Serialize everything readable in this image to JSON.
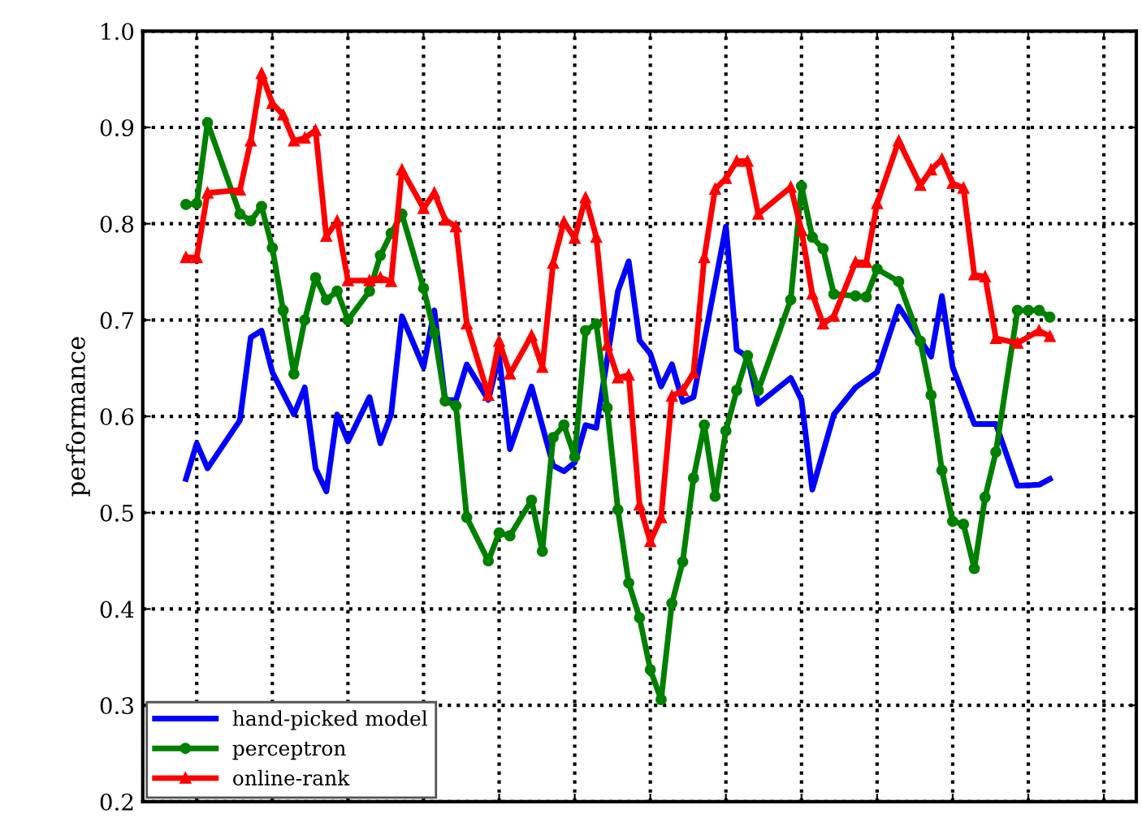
{
  "chart_data": {
    "type": "line",
    "ylabel": "performance",
    "categories": [
      null,
      null,
      null,
      null,
      null,
      null,
      null,
      null,
      null,
      null,
      null,
      null,
      null,
      null,
      null,
      null,
      null,
      null,
      null,
      null,
      null,
      null,
      null,
      null,
      null,
      null,
      null,
      null,
      null,
      null,
      null,
      null,
      null,
      null,
      null,
      null,
      null,
      null,
      null,
      null,
      null,
      null,
      null,
      null,
      null,
      null,
      null,
      null,
      null,
      null,
      null,
      null,
      null,
      null,
      null,
      null,
      null,
      null,
      null,
      null,
      null,
      null,
      null,
      null,
      null,
      null,
      null,
      null,
      null,
      null,
      null,
      null,
      null,
      null,
      null,
      null,
      null,
      null,
      null,
      null,
      null
    ],
    "ylim": [
      0.2,
      1.0
    ],
    "yticks": [
      0.2,
      0.3,
      0.4,
      0.5,
      0.6,
      0.7,
      0.8,
      0.9,
      {
        "value": 1.0,
        "label": "1.0"
      }
    ],
    "tick_labels": "y",
    "grid": true,
    "legend": "bottom left",
    "series": [
      {
        "name": "hand-picked model",
        "color": "#0000ff",
        "marker": "none",
        "values": [
          0.535,
          0.572,
          0.546,
          null,
          null,
          0.596,
          0.682,
          0.689,
          0.646,
          null,
          0.602,
          0.63,
          0.546,
          0.522,
          0.602,
          0.574,
          null,
          0.62,
          0.572,
          0.602,
          0.704,
          null,
          0.651,
          0.71,
          0.617,
          0.617,
          0.654,
          null,
          0.617,
          0.662,
          0.566,
          null,
          0.631,
          null,
          0.549,
          0.543,
          0.552,
          0.591,
          0.588,
          null,
          0.73,
          0.761,
          0.679,
          0.665,
          0.631,
          0.654,
          0.615,
          0.62,
          null,
          null,
          0.797,
          0.669,
          0.662,
          0.613,
          null,
          null,
          0.64,
          0.617,
          0.524,
          null,
          0.602,
          null,
          0.63,
          null,
          0.646,
          null,
          0.714,
          null,
          null,
          0.662,
          0.725,
          0.651,
          null,
          0.592,
          null,
          0.592,
          null,
          0.528,
          null,
          0.529,
          0.535
        ]
      },
      {
        "name": "perceptron",
        "color": "#008000",
        "marker": "circle",
        "values": [
          0.82,
          0.821,
          0.905,
          null,
          null,
          0.81,
          0.803,
          0.818,
          0.775,
          0.71,
          0.644,
          0.7,
          0.744,
          0.721,
          0.73,
          0.7,
          null,
          0.73,
          0.767,
          0.79,
          0.81,
          null,
          0.733,
          0.687,
          0.616,
          0.611,
          0.495,
          null,
          0.45,
          0.479,
          0.476,
          null,
          0.513,
          0.46,
          0.578,
          0.591,
          0.558,
          0.689,
          0.696,
          0.609,
          0.503,
          0.427,
          0.391,
          0.337,
          0.306,
          0.406,
          0.449,
          0.536,
          0.591,
          0.517,
          0.585,
          0.627,
          0.663,
          0.627,
          null,
          null,
          0.721,
          0.839,
          0.786,
          0.774,
          0.727,
          null,
          0.725,
          0.724,
          0.753,
          null,
          0.74,
          null,
          0.678,
          0.622,
          0.544,
          0.491,
          0.488,
          0.442,
          0.516,
          0.563,
          null,
          0.71,
          0.71,
          0.71,
          0.703
        ]
      },
      {
        "name": "online-rank",
        "color": "#ff0000",
        "marker": "triangle",
        "values": [
          0.765,
          0.765,
          0.832,
          null,
          null,
          0.835,
          0.886,
          0.956,
          0.925,
          0.913,
          0.886,
          0.889,
          0.897,
          0.787,
          0.803,
          0.741,
          null,
          0.741,
          0.744,
          0.74,
          0.856,
          null,
          0.816,
          0.832,
          0.804,
          0.797,
          0.696,
          null,
          0.622,
          0.678,
          0.644,
          null,
          0.684,
          0.651,
          0.759,
          0.802,
          0.785,
          0.827,
          0.786,
          0.674,
          0.64,
          0.643,
          0.508,
          0.47,
          0.495,
          0.621,
          0.627,
          0.645,
          0.765,
          0.836,
          0.847,
          0.865,
          0.865,
          0.81,
          null,
          null,
          0.838,
          0.793,
          0.727,
          0.696,
          0.704,
          null,
          0.76,
          0.76,
          0.821,
          null,
          0.886,
          null,
          0.84,
          0.856,
          0.867,
          0.842,
          0.837,
          0.747,
          0.745,
          0.681,
          null,
          0.676,
          null,
          0.689,
          0.683
        ]
      }
    ]
  }
}
